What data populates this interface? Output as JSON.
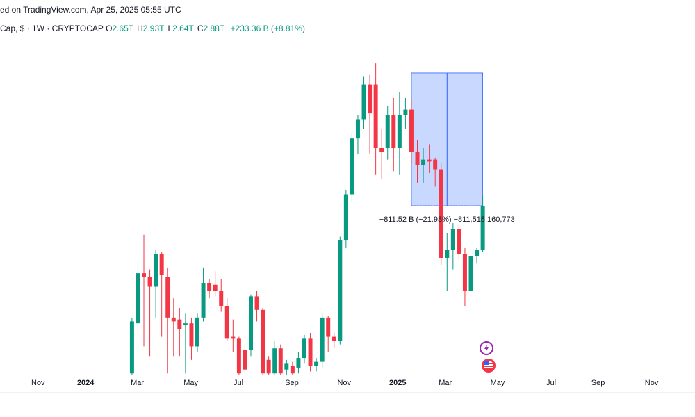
{
  "header": {
    "published": "ed on TradingView.com, Apr 25, 2025 05:55 UTC",
    "symbol": "Cap, $ · 1W · CRYPTOCAP",
    "ohlc": [
      {
        "key": "O",
        "value": "2.65T"
      },
      {
        "key": "H",
        "value": "2.93T"
      },
      {
        "key": "L",
        "value": "2.64T"
      },
      {
        "key": "C",
        "value": "2.88T"
      }
    ],
    "change": "+233.36 B (+8.81%)"
  },
  "chart_data": {
    "type": "candlestick",
    "up_color": "#089981",
    "down_color": "#f23645",
    "xlim": [
      -22.2,
      94.7
    ],
    "ylim": [
      2.0,
      3.66
    ],
    "xticks": [
      {
        "value": -15.8,
        "label": "Nov"
      },
      {
        "value": -7.8,
        "label": "2024"
      },
      {
        "value": 0.9,
        "label": "Mar"
      },
      {
        "value": 9.9,
        "label": "May"
      },
      {
        "value": 17.9,
        "label": "Jul"
      },
      {
        "value": 26.9,
        "label": "Sep"
      },
      {
        "value": 35.7,
        "label": "Nov"
      },
      {
        "value": 44.7,
        "label": "2025"
      },
      {
        "value": 52.7,
        "label": "Mar"
      },
      {
        "value": 61.5,
        "label": "May"
      },
      {
        "value": 70.5,
        "label": "Jul"
      },
      {
        "value": 78.4,
        "label": "Sep"
      },
      {
        "value": 87.4,
        "label": "Nov"
      }
    ],
    "candles": [
      {
        "o": 2.01,
        "h": 2.3,
        "l": 2.0,
        "c": 2.28
      },
      {
        "o": 2.27,
        "h": 2.59,
        "l": 2.22,
        "c": 2.53
      },
      {
        "o": 2.53,
        "h": 2.73,
        "l": 2.15,
        "c": 2.51
      },
      {
        "o": 2.51,
        "h": 2.55,
        "l": 2.1,
        "c": 2.46
      },
      {
        "o": 2.46,
        "h": 2.65,
        "l": 2.3,
        "c": 2.63
      },
      {
        "o": 2.63,
        "h": 2.64,
        "l": 2.2,
        "c": 2.52
      },
      {
        "o": 2.51,
        "h": 2.56,
        "l": 2.01,
        "c": 2.3
      },
      {
        "o": 2.3,
        "h": 2.4,
        "l": 2.1,
        "c": 2.28
      },
      {
        "o": 2.29,
        "h": 2.35,
        "l": 2.1,
        "c": 2.24
      },
      {
        "o": 2.26,
        "h": 2.32,
        "l": 2.01,
        "c": 2.27
      },
      {
        "o": 2.27,
        "h": 2.3,
        "l": 2.08,
        "c": 2.15
      },
      {
        "o": 2.15,
        "h": 2.32,
        "l": 2.12,
        "c": 2.3
      },
      {
        "o": 2.3,
        "h": 2.56,
        "l": 2.28,
        "c": 2.48
      },
      {
        "o": 2.48,
        "h": 2.5,
        "l": 2.4,
        "c": 2.44
      },
      {
        "o": 2.47,
        "h": 2.54,
        "l": 2.41,
        "c": 2.44
      },
      {
        "o": 2.44,
        "h": 2.5,
        "l": 2.33,
        "c": 2.36
      },
      {
        "o": 2.36,
        "h": 2.4,
        "l": 2.18,
        "c": 2.19
      },
      {
        "o": 2.2,
        "h": 2.29,
        "l": 2.12,
        "c": 2.19
      },
      {
        "o": 2.19,
        "h": 2.2,
        "l": 2.0,
        "c": 2.01
      },
      {
        "o": 2.13,
        "h": 2.16,
        "l": 2.01,
        "c": 2.03
      },
      {
        "o": 2.13,
        "h": 2.42,
        "l": 2.1,
        "c": 2.41
      },
      {
        "o": 2.41,
        "h": 2.44,
        "l": 2.28,
        "c": 2.34
      },
      {
        "o": 2.34,
        "h": 2.35,
        "l": 2.0,
        "c": 2.01
      },
      {
        "o": 2.08,
        "h": 2.1,
        "l": 2.0,
        "c": 2.01
      },
      {
        "o": 2.01,
        "h": 2.18,
        "l": 2.0,
        "c": 2.14
      },
      {
        "o": 2.14,
        "h": 2.16,
        "l": 2.0,
        "c": 2.01
      },
      {
        "o": 2.03,
        "h": 2.08,
        "l": 2.0,
        "c": 2.06
      },
      {
        "o": 2.05,
        "h": 2.07,
        "l": 2.0,
        "c": 2.01
      },
      {
        "o": 2.04,
        "h": 2.12,
        "l": 2.01,
        "c": 2.09
      },
      {
        "o": 2.09,
        "h": 2.21,
        "l": 2.06,
        "c": 2.19
      },
      {
        "o": 2.19,
        "h": 2.22,
        "l": 2.02,
        "c": 2.05
      },
      {
        "o": 2.05,
        "h": 2.09,
        "l": 2.02,
        "c": 2.07
      },
      {
        "o": 2.07,
        "h": 2.32,
        "l": 2.04,
        "c": 2.3
      },
      {
        "o": 2.3,
        "h": 2.31,
        "l": 2.12,
        "c": 2.2
      },
      {
        "o": 2.2,
        "h": 2.22,
        "l": 2.14,
        "c": 2.18
      },
      {
        "o": 2.18,
        "h": 2.72,
        "l": 2.16,
        "c": 2.7
      },
      {
        "o": 2.7,
        "h": 2.96,
        "l": 2.66,
        "c": 2.94
      },
      {
        "o": 2.94,
        "h": 3.26,
        "l": 2.9,
        "c": 3.23
      },
      {
        "o": 3.23,
        "h": 3.35,
        "l": 3.15,
        "c": 3.33
      },
      {
        "o": 3.33,
        "h": 3.55,
        "l": 3.28,
        "c": 3.51
      },
      {
        "o": 3.51,
        "h": 3.56,
        "l": 3.15,
        "c": 3.36
      },
      {
        "o": 3.51,
        "h": 3.62,
        "l": 3.04,
        "c": 3.18
      },
      {
        "o": 3.18,
        "h": 3.28,
        "l": 3.02,
        "c": 3.16
      },
      {
        "o": 3.18,
        "h": 3.4,
        "l": 3.12,
        "c": 3.35
      },
      {
        "o": 3.35,
        "h": 3.44,
        "l": 3.06,
        "c": 3.18
      },
      {
        "o": 3.18,
        "h": 3.47,
        "l": 3.04,
        "c": 3.35
      },
      {
        "o": 3.35,
        "h": 3.44,
        "l": 3.28,
        "c": 3.38
      },
      {
        "o": 3.38,
        "h": 3.43,
        "l": 3.1,
        "c": 3.16
      },
      {
        "o": 3.16,
        "h": 3.22,
        "l": 3.0,
        "c": 3.09
      },
      {
        "o": 3.09,
        "h": 3.18,
        "l": 3.0,
        "c": 3.12
      },
      {
        "o": 3.12,
        "h": 3.2,
        "l": 3.05,
        "c": 3.11
      },
      {
        "o": 3.12,
        "h": 3.13,
        "l": 2.98,
        "c": 3.07
      },
      {
        "o": 3.07,
        "h": 3.1,
        "l": 2.57,
        "c": 2.61
      },
      {
        "o": 2.61,
        "h": 2.74,
        "l": 2.44,
        "c": 2.65
      },
      {
        "o": 2.65,
        "h": 2.79,
        "l": 2.55,
        "c": 2.76
      },
      {
        "o": 2.76,
        "h": 2.78,
        "l": 2.6,
        "c": 2.63
      },
      {
        "o": 2.63,
        "h": 2.66,
        "l": 2.36,
        "c": 2.44
      },
      {
        "o": 2.44,
        "h": 2.64,
        "l": 2.29,
        "c": 2.62
      },
      {
        "o": 2.62,
        "h": 2.66,
        "l": 2.58,
        "c": 2.65
      },
      {
        "o": 2.65,
        "h": 2.93,
        "l": 2.64,
        "c": 2.88
      }
    ],
    "measure": {
      "x": [
        47,
        59
      ],
      "y": [
        3.57,
        2.88
      ],
      "label": "−811.52 B (−21.98%) −811,515,160,773"
    }
  }
}
